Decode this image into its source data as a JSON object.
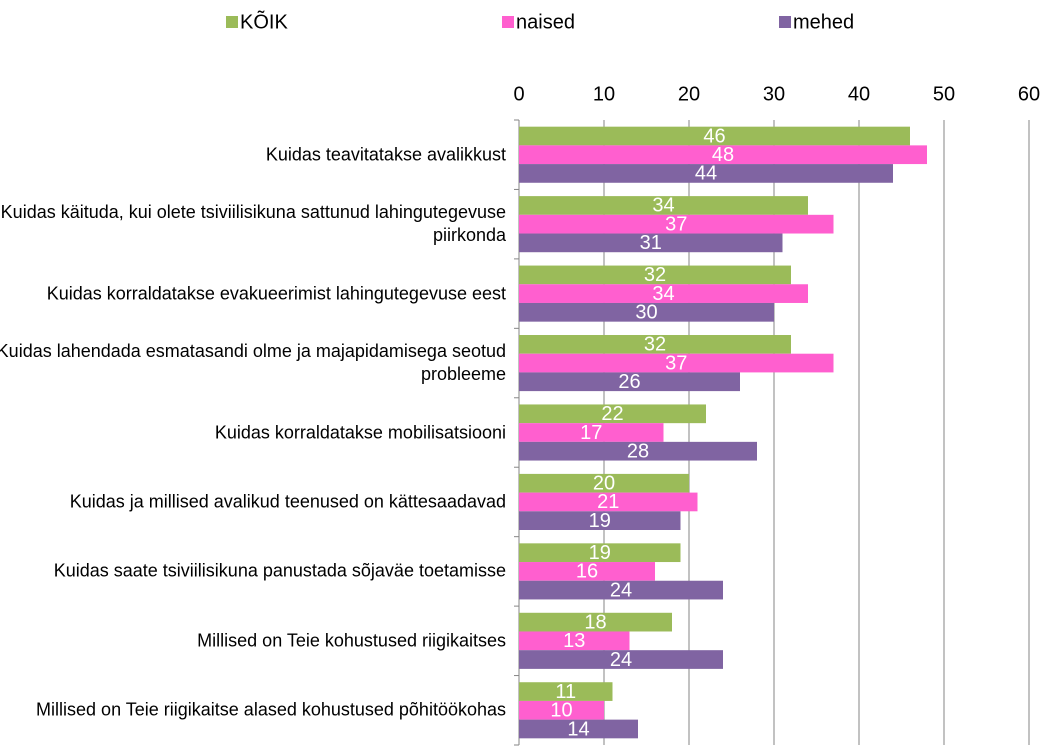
{
  "chart_data": {
    "type": "bar",
    "orientation": "horizontal",
    "categories": [
      "Kuidas teavitatakse avalikkust",
      "Kuidas käituda, kui olete tsiviilisikuna sattunud lahingutegevuse piirkonda",
      "Kuidas korraldatakse evakueerimist lahingutegevuse eest",
      "Kuidas lahendada esmatasandi olme ja majapidamisega seotud probleeme",
      "Kuidas korraldatakse mobilisatsiooni",
      "Kuidas ja millised avalikud teenused on kättesaadavad",
      "Kuidas saate tsiviilisikuna panustada sõjaväe toetamisse",
      "Millised on Teie kohustused riigikaitses",
      "Millised on Teie riigikaitse alased kohustused põhitöökohas"
    ],
    "series": [
      {
        "name": "KÕIK",
        "color": "#9bbb59",
        "values": [
          46,
          34,
          32,
          32,
          22,
          20,
          19,
          18,
          11
        ]
      },
      {
        "name": "naised",
        "color": "#ff5fcf",
        "values": [
          48,
          37,
          34,
          37,
          17,
          21,
          16,
          13,
          10
        ]
      },
      {
        "name": "mehed",
        "color": "#8064a2",
        "values": [
          44,
          31,
          30,
          26,
          28,
          19,
          24,
          24,
          14
        ]
      }
    ],
    "xlim": [
      0,
      60
    ],
    "xticks": [
      0,
      10,
      20,
      30,
      40,
      50,
      60
    ],
    "grid": true,
    "legend": "top"
  }
}
